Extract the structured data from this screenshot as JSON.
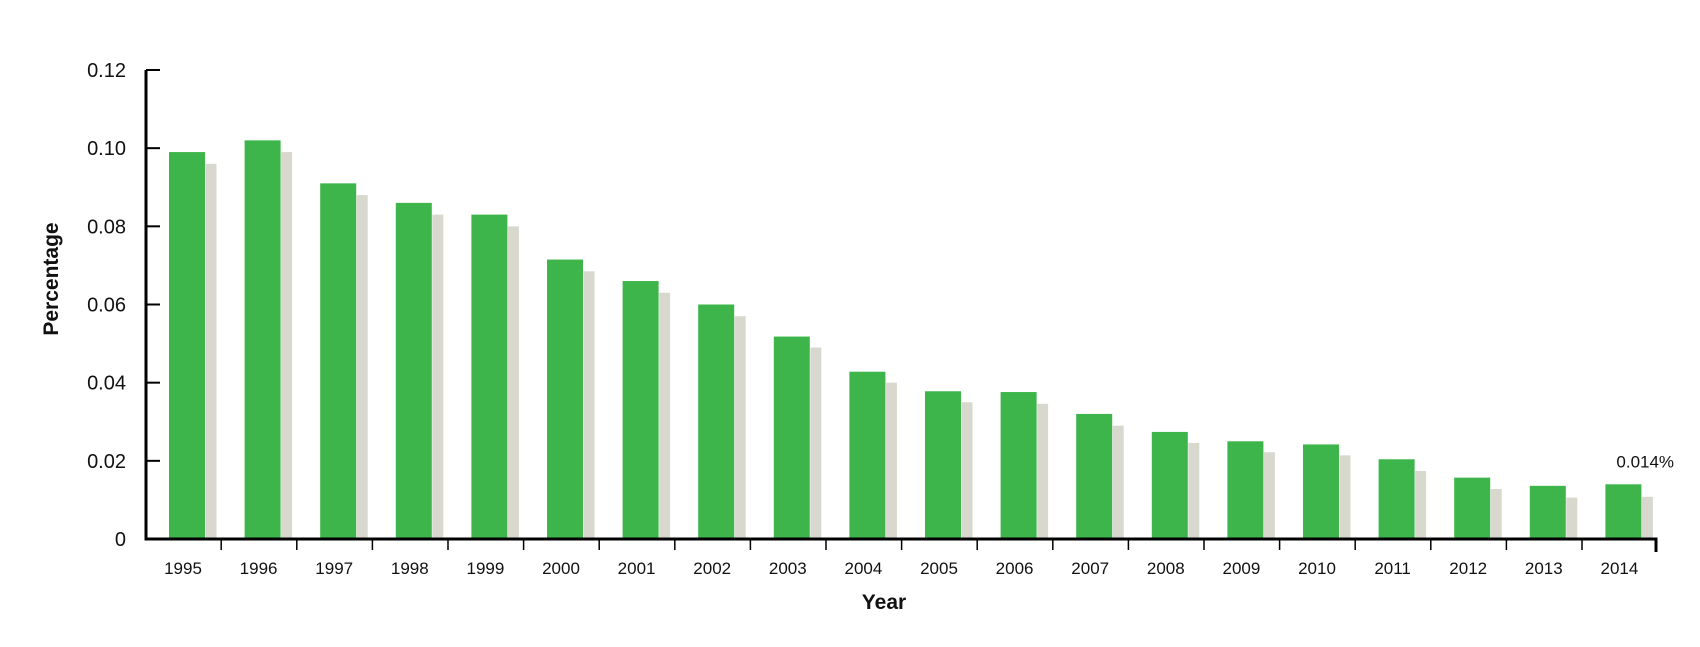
{
  "chart_data": {
    "type": "bar",
    "xlabel": "Year",
    "ylabel": "Percentage",
    "ylim": [
      0,
      0.12
    ],
    "yticks": [
      "0",
      "0.02",
      "0.04",
      "0.06",
      "0.08",
      "0.10",
      "0.12"
    ],
    "grid": false,
    "categories": [
      "1995",
      "1996",
      "1997",
      "1998",
      "1999",
      "2000",
      "2001",
      "2002",
      "2003",
      "2004",
      "2005",
      "2006",
      "2007",
      "2008",
      "2009",
      "2010",
      "2011",
      "2012",
      "2013",
      "2014"
    ],
    "series": [
      {
        "color": "#3db54a",
        "values": [
          0.099,
          0.102,
          0.091,
          0.086,
          0.083,
          0.0715,
          0.066,
          0.06,
          0.0518,
          0.0428,
          0.0378,
          0.0376,
          0.032,
          0.0274,
          0.025,
          0.0242,
          0.0204,
          0.0157,
          0.0136,
          0.014
        ]
      },
      {
        "color": "#d9d8cf",
        "values": [
          0.096,
          0.099,
          0.088,
          0.083,
          0.08,
          0.0685,
          0.063,
          0.057,
          0.049,
          0.04,
          0.035,
          0.0346,
          0.029,
          0.0246,
          0.0222,
          0.0214,
          0.0174,
          0.0128,
          0.0106,
          0.0108
        ]
      }
    ],
    "annotations": [
      {
        "category": "2014",
        "text": "0.014%"
      }
    ]
  }
}
